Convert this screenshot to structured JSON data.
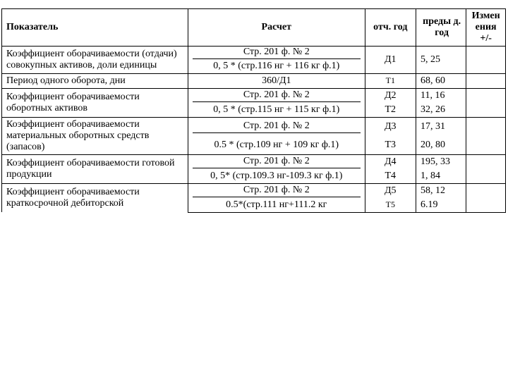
{
  "headers": {
    "indicator": "Показатель",
    "calculation": "Расчет",
    "otch_year": "отч. год",
    "pred_year": "преды д. год",
    "change": "Измен ения +/-"
  },
  "calc_common": {
    "stroke_top": "Стр. 201 ф. № 2"
  },
  "rows": [
    {
      "indicator": "Коэффициент оборачиваемости (отдачи) совокупных активов, доли единицы",
      "calc_bottom": "0, 5 * (стр.116 нг + 116 кг ф.1)",
      "oty": "Д1",
      "pred": "5, 25"
    },
    {
      "indicator": "Период одного оборота, дни",
      "calc_single": "360/Д1",
      "oty": "Т1",
      "pred": "68, 60"
    },
    {
      "indicator": "Коэффициент оборачиваемости оборотных активов",
      "calc_bottom": "0, 5 * (стр.115 нг + 115 кг ф.1)",
      "oty_top": "Д2",
      "pred_top": "11, 16",
      "oty_bot": "Т2",
      "pred_bot": "32, 26"
    },
    {
      "indicator": "Коэффициент оборачиваемости материальных оборотных средств (запасов)",
      "calc_bottom": "0.5 * (стр.109 нг + 109 кг ф.1)",
      "oty_top": "Д3",
      "pred_top": "17, 31",
      "oty_bot": "Т3",
      "pred_bot": "20, 80"
    },
    {
      "indicator": "Коэффициент оборачиваемости готовой продукции",
      "calc_bottom": "0, 5* (стр.109.3 нг-109.3 кг ф.1)",
      "oty_top": "Д4",
      "pred_top": "195, 33",
      "oty_bot": "Т4",
      "pred_bot": "1, 84"
    },
    {
      "indicator": "Коэффициент оборачиваемости краткосрочной дебиторской",
      "calc_bottom": "0.5*(стр.111 нг+111.2 кг",
      "oty_top": "Д5",
      "pred_top": "58, 12",
      "oty_bot": "Т5",
      "pred_bot": "6.19"
    }
  ]
}
